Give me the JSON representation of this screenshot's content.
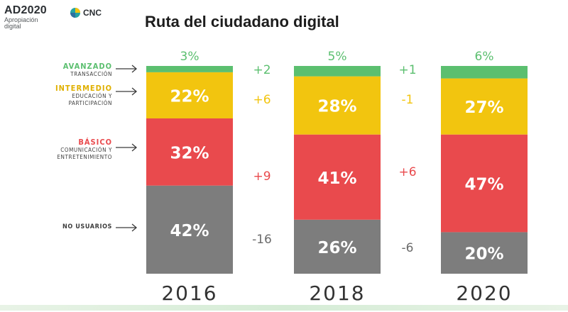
{
  "logo": {
    "name": "AD2020",
    "subtitle_line1": "Apropiación",
    "subtitle_line2": "digital",
    "partner": "CNC",
    "partner_icon": "cnc-logo-icon"
  },
  "title": "Ruta del ciudadano digital",
  "colors": {
    "avanzado": "#5bbf6f",
    "intermedio": "#f2c50f",
    "basico": "#e94a4d",
    "no_usuarios": "#7d7d7d",
    "change_gray": "#6b6b6b"
  },
  "categories": [
    {
      "name": "AVANZADO",
      "sub1": "TRANSACCIÓN",
      "sub2": "",
      "color": "#5bbf6f"
    },
    {
      "name": "INTERMEDIO",
      "sub1": "EDUCACIÓN Y",
      "sub2": "PARTICIPACIÓN",
      "color": "#f2c50f"
    },
    {
      "name": "BÁSICO",
      "sub1": "COMUNICACIÓN Y",
      "sub2": "ENTRETENIMIENTO",
      "color": "#e94a4d"
    },
    {
      "name": "NO USUARIOS",
      "sub1": "",
      "sub2": "",
      "color": "#3d3d3d"
    }
  ],
  "chart_data": {
    "type": "bar",
    "stacked": true,
    "title": "Ruta del ciudadano digital",
    "categories": [
      "2016",
      "2018",
      "2020"
    ],
    "series": [
      {
        "name": "NO USUARIOS",
        "values": [
          42,
          26,
          20
        ],
        "labels": [
          "42%",
          "26%",
          "20%"
        ],
        "color": "#7d7d7d"
      },
      {
        "name": "BÁSICO",
        "values": [
          32,
          41,
          47
        ],
        "labels": [
          "32%",
          "41%",
          "47%"
        ],
        "color": "#e94a4d"
      },
      {
        "name": "INTERMEDIO",
        "values": [
          22,
          28,
          27
        ],
        "labels": [
          "22%",
          "28%",
          "27%"
        ],
        "color": "#f2c50f"
      },
      {
        "name": "AVANZADO",
        "values": [
          3,
          5,
          6
        ],
        "labels": [
          "3%",
          "5%",
          "6%"
        ],
        "color": "#5bbf6f"
      }
    ],
    "changes": [
      {
        "period": "2016-2018",
        "AVANZADO": "+2",
        "INTERMEDIO": "+6",
        "BÁSICO": "+9",
        "NO USUARIOS": "-16"
      },
      {
        "period": "2018-2020",
        "AVANZADO": "+1",
        "INTERMEDIO": "-1",
        "BÁSICO": "+6",
        "NO USUARIOS": "-6"
      }
    ],
    "ylim": [
      0,
      100
    ],
    "grid": false,
    "legend": "left"
  }
}
